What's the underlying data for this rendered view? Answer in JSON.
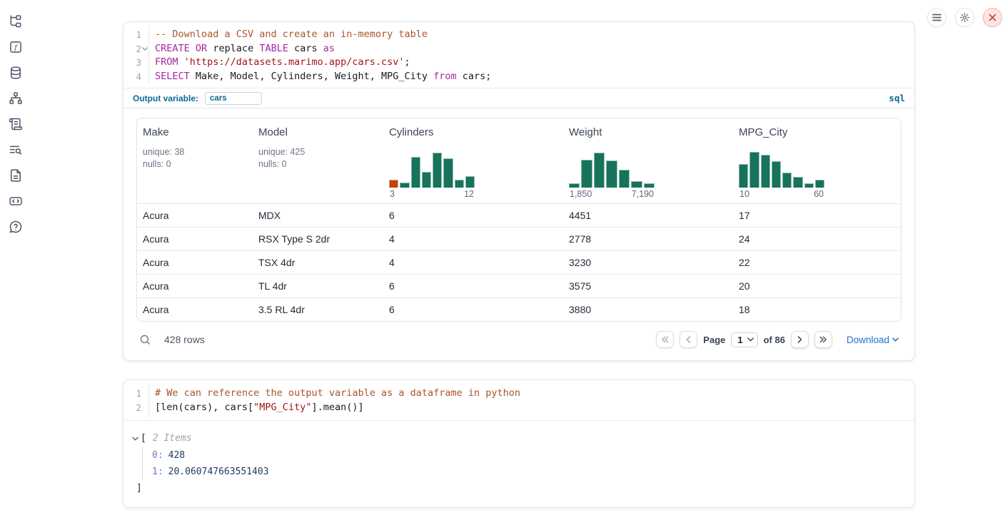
{
  "topbar": {
    "buttons": [
      {
        "name": "menu"
      },
      {
        "name": "settings"
      },
      {
        "name": "shutdown"
      }
    ]
  },
  "sidebar": {
    "icons": [
      "file-tree",
      "helper-functions",
      "datasources",
      "dependencies",
      "scratchpad",
      "logs",
      "documentation",
      "snippets",
      "help"
    ]
  },
  "sql_cell": {
    "lines": [
      {
        "num": "1",
        "fold": false,
        "tokens": [
          [
            "comment",
            "-- Download a CSV and create an in-memory table"
          ]
        ]
      },
      {
        "num": "2",
        "fold": true,
        "tokens": [
          [
            "keyword",
            "CREATE"
          ],
          [
            "plain",
            " "
          ],
          [
            "keyword",
            "OR"
          ],
          [
            "plain",
            " replace "
          ],
          [
            "keyword",
            "TABLE"
          ],
          [
            "plain",
            " cars "
          ],
          [
            "keyword",
            "as"
          ]
        ]
      },
      {
        "num": "3",
        "fold": false,
        "tokens": [
          [
            "keyword",
            "FROM"
          ],
          [
            "plain",
            " "
          ],
          [
            "string",
            "'https://datasets.marimo.app/cars.csv'"
          ],
          [
            "plain",
            ";"
          ]
        ]
      },
      {
        "num": "4",
        "fold": false,
        "tokens": [
          [
            "keyword",
            "SELECT"
          ],
          [
            "plain",
            " Make, Model, Cylinders, Weight, MPG_City "
          ],
          [
            "keyword",
            "from"
          ],
          [
            "plain",
            " cars;"
          ]
        ]
      }
    ],
    "output_variable_label": "Output variable:",
    "output_variable_value": "cars",
    "language_badge": "sql"
  },
  "table": {
    "columns": [
      {
        "name": "Make",
        "stats": [
          "unique: 38",
          "nulls: 0"
        ]
      },
      {
        "name": "Model",
        "stats": [
          "unique: 425",
          "nulls: 0"
        ]
      },
      {
        "name": "Cylinders",
        "histogram": {
          "heights": [
            22,
            14,
            82,
            42,
            95,
            78,
            22,
            30
          ],
          "highlight_first": true,
          "x_min": "3",
          "x_max": "12"
        }
      },
      {
        "name": "Weight",
        "histogram": {
          "heights": [
            12,
            75,
            95,
            73,
            48,
            17,
            12
          ],
          "highlight_first": false,
          "x_min": "1,850",
          "x_max": "7,190"
        }
      },
      {
        "name": "MPG_City",
        "histogram": {
          "heights": [
            63,
            97,
            89,
            71,
            41,
            29,
            12,
            21
          ],
          "highlight_first": false,
          "x_min": "10",
          "x_max": "60"
        }
      }
    ],
    "rows": [
      [
        "Acura",
        "MDX",
        "6",
        "4451",
        "17"
      ],
      [
        "Acura",
        "RSX Type S 2dr",
        "4",
        "2778",
        "24"
      ],
      [
        "Acura",
        "TSX 4dr",
        "4",
        "3230",
        "22"
      ],
      [
        "Acura",
        "TL 4dr",
        "6",
        "3575",
        "20"
      ],
      [
        "Acura",
        "3.5 RL 4dr",
        "6",
        "3880",
        "18"
      ]
    ],
    "footer": {
      "row_count": "428 rows",
      "page_label": "Page",
      "page_value": "1",
      "of_label": "of 86",
      "download_label": "Download"
    }
  },
  "python_cell": {
    "lines": [
      {
        "num": "1",
        "fold": false,
        "tokens": [
          [
            "comment",
            "# We can reference the output variable as a dataframe in python"
          ]
        ]
      },
      {
        "num": "2",
        "fold": false,
        "tokens": [
          [
            "plain",
            "[len(cars), cars["
          ],
          [
            "string",
            "\"MPG_City\""
          ],
          [
            "plain",
            "].mean()]"
          ]
        ]
      }
    ]
  },
  "tree_output": {
    "open_bracket": "[",
    "items_label": "2 Items",
    "entries": [
      {
        "key": "0:",
        "value": "428"
      },
      {
        "key": "1:",
        "value": "20.060747663551403"
      }
    ],
    "close_bracket": "]"
  },
  "colors": {
    "histogram_green": "#17735c",
    "histogram_orange": "#c2410c",
    "accent_blue": "#0e6898",
    "link_blue": "#2172c8",
    "keyword_purple": "#a626a4",
    "string_red": "#a31515",
    "comment_orange": "#aa5528"
  }
}
